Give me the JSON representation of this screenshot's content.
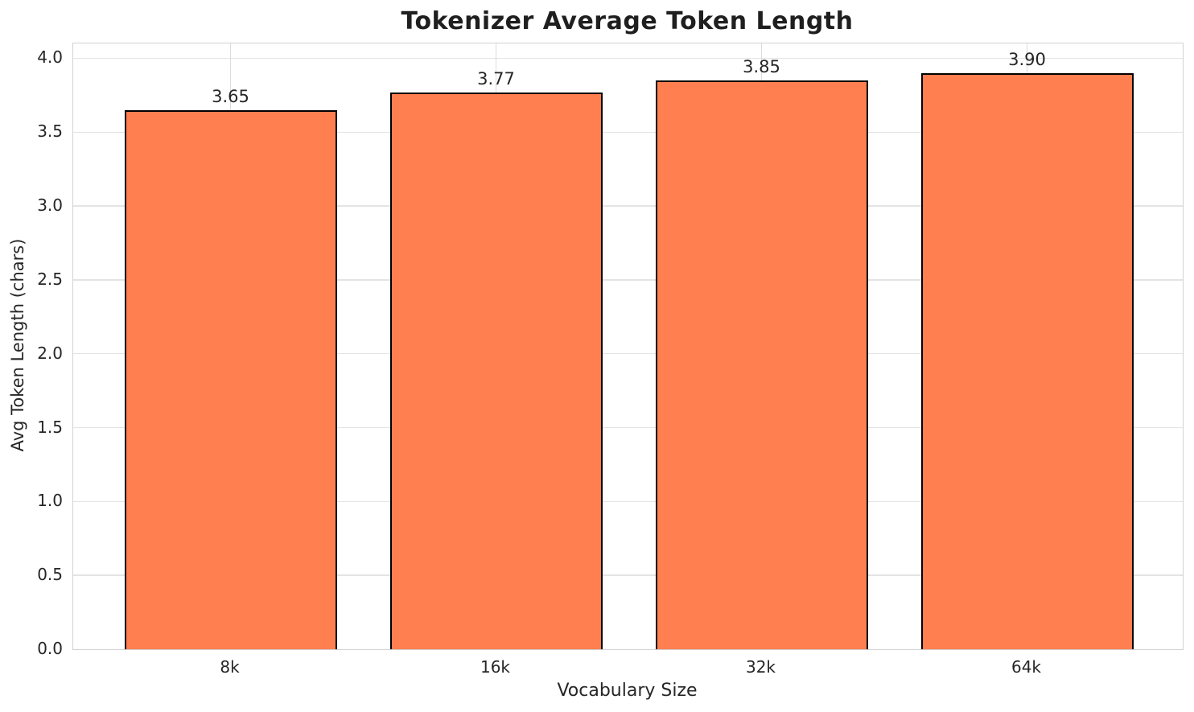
{
  "chart_data": {
    "type": "bar",
    "title": "Tokenizer Average Token Length",
    "xlabel": "Vocabulary Size",
    "ylabel": "Avg Token Length (chars)",
    "categories": [
      "8k",
      "16k",
      "32k",
      "64k"
    ],
    "values": [
      3.65,
      3.77,
      3.85,
      3.9
    ],
    "value_labels": [
      "3.65",
      "3.77",
      "3.85",
      "3.90"
    ],
    "ylim": [
      0,
      4.1
    ],
    "yticks": [
      0,
      0.5,
      1,
      1.5,
      2,
      2.5,
      3,
      3.5,
      4
    ],
    "ytick_labels": [
      "0.0",
      "0.5",
      "1.0",
      "1.5",
      "2.0",
      "2.5",
      "3.0",
      "3.5",
      "4.0"
    ],
    "grid": true,
    "legend": null,
    "colors": {
      "bar_fill": "#FF7F50",
      "bar_edge": "#000000",
      "grid_line_h": "#e4e4e4",
      "grid_line_v": "#dcdcdc",
      "spine": "#d2d2d2",
      "text": "#262626",
      "title_text": "#1f1f1f",
      "background": "#ffffff"
    }
  }
}
